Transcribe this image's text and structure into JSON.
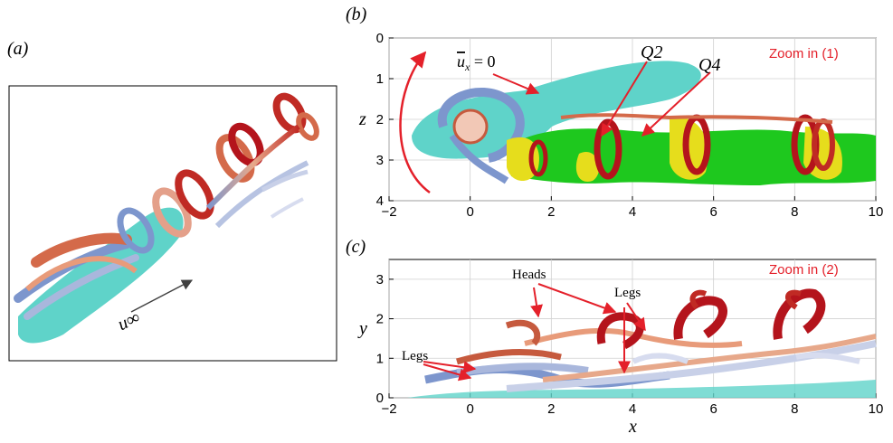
{
  "panels": [
    {
      "id": "a",
      "label": "(a)",
      "freestream": "u∞"
    },
    {
      "id": "b",
      "label": "(b)",
      "zoom_note": "Zoom in (1)",
      "annotations": [
        "ū_x = 0",
        "Q2",
        "Q4"
      ]
    },
    {
      "id": "c",
      "label": "(c)",
      "zoom_note": "Zoom in (2)",
      "annotations": [
        "Heads",
        "Legs",
        "Legs"
      ]
    }
  ],
  "chart_data": [
    {
      "type": "other",
      "panel": "b",
      "xlabel": "",
      "ylabel": "z",
      "xlim": [
        -2,
        10
      ],
      "ylim": [
        4,
        0
      ],
      "y_inverted": true,
      "xticks": [
        "−2",
        "0",
        "2",
        "4",
        "6",
        "8",
        "10"
      ],
      "yticks": [
        "0",
        "1",
        "2",
        "3",
        "4"
      ],
      "grid": true
    },
    {
      "type": "other",
      "panel": "c",
      "xlabel": "x",
      "ylabel": "y",
      "xlim": [
        -2,
        10
      ],
      "ylim": [
        0,
        3.5
      ],
      "xticks": [
        "−2",
        "0",
        "2",
        "4",
        "6",
        "8",
        "10"
      ],
      "yticks": [
        "0",
        "1",
        "2",
        "3"
      ],
      "grid": true
    }
  ],
  "colors": {
    "red": "#e4202a",
    "cyan": "#5fd3c9",
    "green": "#1ec81e",
    "yellow": "#e6dd1c",
    "dark_red": "#b4141c",
    "blue": "#7d96cd"
  }
}
